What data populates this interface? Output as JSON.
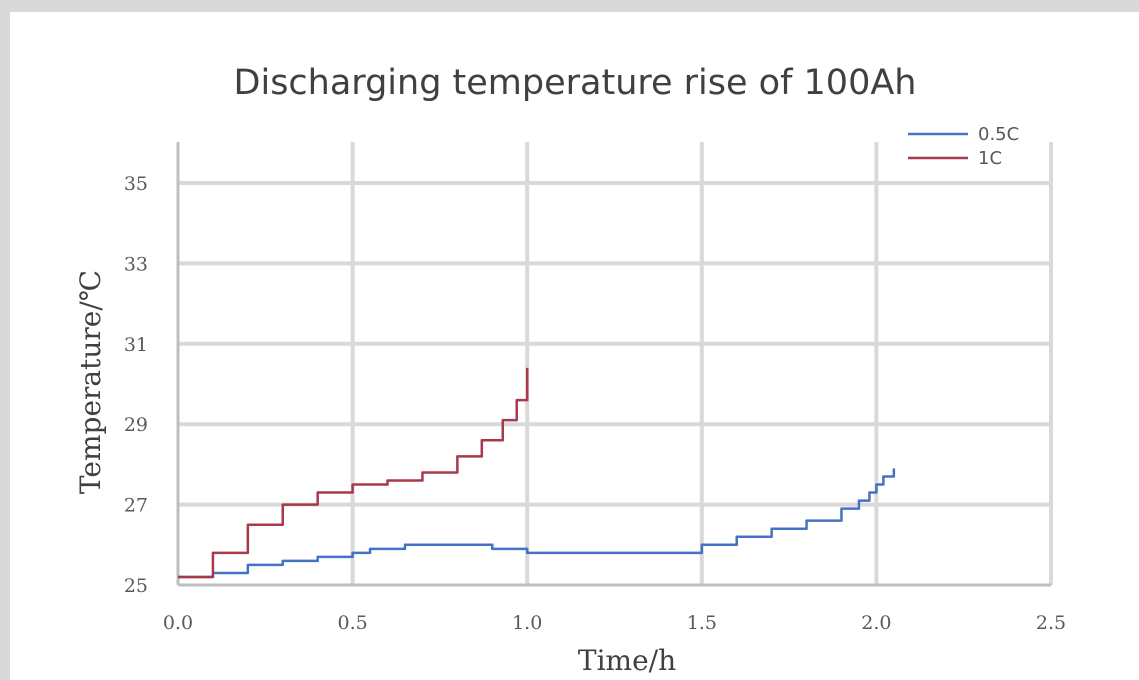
{
  "chart_data": {
    "type": "line",
    "title": "Discharging temperature rise of 100Ah",
    "xlabel": "Time/h",
    "ylabel": "Temperature/℃",
    "xlim": [
      0,
      2.5
    ],
    "ylim": [
      25,
      36
    ],
    "x_ticks": [
      0.0,
      0.5,
      1.0,
      1.5,
      2.0,
      2.5
    ],
    "x_tick_labels": [
      "0.0",
      "0.5",
      "1.0",
      "1.5",
      "2.0",
      "2.5"
    ],
    "y_ticks": [
      25,
      27,
      29,
      31,
      33,
      35
    ],
    "y_tick_labels": [
      "25",
      "27",
      "29",
      "31",
      "33",
      "35"
    ],
    "grid": true,
    "legend_position": "top-right",
    "series": [
      {
        "name": "0.5C",
        "color": "#4472c4",
        "x": [
          0.0,
          0.05,
          0.1,
          0.2,
          0.3,
          0.4,
          0.5,
          0.55,
          0.65,
          0.8,
          0.87,
          0.9,
          1.0,
          1.2,
          1.4,
          1.5,
          1.6,
          1.7,
          1.8,
          1.9,
          1.95,
          1.98,
          2.0,
          2.02,
          2.05
        ],
        "values": [
          25.2,
          25.2,
          25.3,
          25.5,
          25.6,
          25.7,
          25.8,
          25.9,
          26.0,
          26.0,
          26.0,
          25.9,
          25.8,
          25.8,
          25.8,
          26.0,
          26.2,
          26.4,
          26.6,
          26.9,
          27.1,
          27.3,
          27.5,
          27.7,
          27.9
        ]
      },
      {
        "name": "1C",
        "color": "#a63a4a",
        "x": [
          0.0,
          0.03,
          0.1,
          0.2,
          0.3,
          0.4,
          0.5,
          0.6,
          0.7,
          0.8,
          0.87,
          0.93,
          0.97,
          1.0
        ],
        "values": [
          25.2,
          25.2,
          25.8,
          26.5,
          27.0,
          27.3,
          27.5,
          27.6,
          27.8,
          28.2,
          28.6,
          29.1,
          29.6,
          30.4
        ]
      }
    ]
  }
}
